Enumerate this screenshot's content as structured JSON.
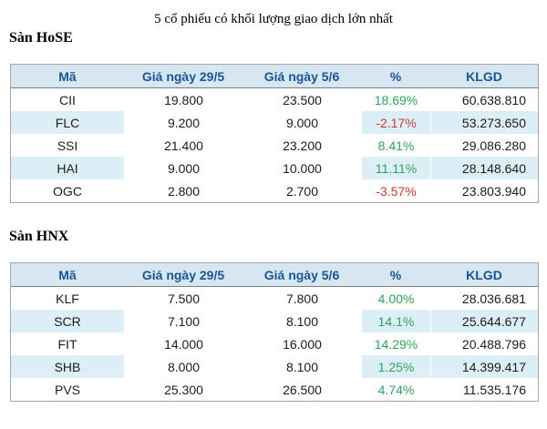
{
  "title": "5 cổ phiếu có khối lượng giao dịch lớn nhất",
  "colors": {
    "header_bg": "#d6e7f1",
    "header_text": "#1a5499",
    "stripe_bg": "#dceef6",
    "positive": "#2fa45c",
    "negative": "#cc3c35",
    "border_outer": "#a6a6a6",
    "border_header": "#7e7e7e",
    "body_text": "#1c1c1c"
  },
  "hose": {
    "section_label": "Sàn HoSE",
    "headers": {
      "ma": "Mã",
      "gia1": "Giá ngày 29/5",
      "gia2": "Giá ngày 5/6",
      "pct": "%",
      "klgd": "KLGD"
    },
    "rows": [
      {
        "ma": "CII",
        "gia1": "19.800",
        "gia2": "23.500",
        "pct": "18.69%",
        "trend": "up",
        "klgd": "60.638.810"
      },
      {
        "ma": "FLC",
        "gia1": "9.200",
        "gia2": "9.000",
        "pct": "-2.17%",
        "trend": "down",
        "klgd": "53.273.650"
      },
      {
        "ma": "SSI",
        "gia1": "21.400",
        "gia2": "23.200",
        "pct": "8.41%",
        "trend": "up",
        "klgd": "29.086.280"
      },
      {
        "ma": "HAI",
        "gia1": "9.000",
        "gia2": "10.000",
        "pct": "11.11%",
        "trend": "up",
        "klgd": "28.148.640"
      },
      {
        "ma": "OGC",
        "gia1": "2.800",
        "gia2": "2.700",
        "pct": "-3.57%",
        "trend": "down",
        "klgd": "23.803.940"
      }
    ]
  },
  "hnx": {
    "section_label": "Sàn HNX",
    "headers": {
      "ma": "Mã",
      "gia1": "Giá ngày 29/5",
      "gia2": "Giá ngày 5/6",
      "pct": "%",
      "klgd": "KLGD"
    },
    "rows": [
      {
        "ma": "KLF",
        "gia1": "7.500",
        "gia2": "7.800",
        "pct": "4.00%",
        "trend": "up",
        "klgd": "28.036.681"
      },
      {
        "ma": "SCR",
        "gia1": "7.100",
        "gia2": "8.100",
        "pct": "14.1%",
        "trend": "up",
        "klgd": "25.644.677"
      },
      {
        "ma": "FIT",
        "gia1": "14.000",
        "gia2": "16.000",
        "pct": "14.29%",
        "trend": "up",
        "klgd": "20.488.796"
      },
      {
        "ma": "SHB",
        "gia1": "8.000",
        "gia2": "8.100",
        "pct": "1.25%",
        "trend": "up",
        "klgd": "14.399.417"
      },
      {
        "ma": "PVS",
        "gia1": "25.300",
        "gia2": "26.500",
        "pct": "4.74%",
        "trend": "up",
        "klgd": "11.535.176"
      }
    ]
  }
}
